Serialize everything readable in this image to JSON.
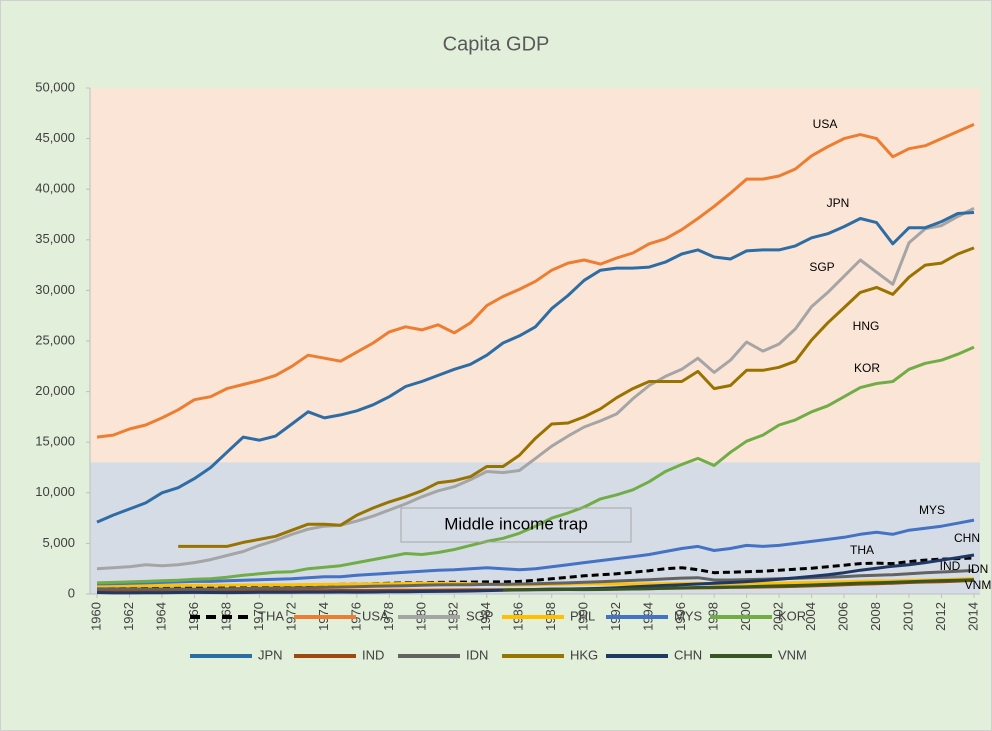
{
  "chart_data": {
    "type": "line",
    "title": "Capita GDP",
    "x": [
      1960,
      1961,
      1962,
      1963,
      1964,
      1965,
      1966,
      1967,
      1968,
      1969,
      1970,
      1971,
      1972,
      1973,
      1974,
      1975,
      1976,
      1977,
      1978,
      1979,
      1980,
      1981,
      1982,
      1983,
      1984,
      1985,
      1986,
      1987,
      1988,
      1989,
      1990,
      1991,
      1992,
      1993,
      1994,
      1995,
      1996,
      1997,
      1998,
      1999,
      2000,
      2001,
      2002,
      2003,
      2004,
      2005,
      2006,
      2007,
      2008,
      2009,
      2010,
      2011,
      2012,
      2013,
      2014
    ],
    "xlim": [
      1960,
      2014
    ],
    "xticks": [
      1960,
      1962,
      1964,
      1966,
      1968,
      1970,
      1972,
      1974,
      1976,
      1978,
      1980,
      1982,
      1984,
      1986,
      1988,
      1990,
      1992,
      1994,
      1996,
      1998,
      2000,
      2002,
      2004,
      2006,
      2008,
      2010,
      2012,
      2014
    ],
    "ylim": [
      0,
      50000
    ],
    "yticks": [
      0,
      {
        "value": 5000,
        "label": "5,000"
      },
      {
        "value": 10000,
        "label": "10,000"
      },
      {
        "value": 15000,
        "label": "15,000"
      },
      {
        "value": 20000,
        "label": "20,000"
      },
      {
        "value": 25000,
        "label": "25,000"
      },
      {
        "value": 30000,
        "label": "30,000"
      },
      {
        "value": 35000,
        "label": "35,000"
      },
      {
        "value": 40000,
        "label": "40,000"
      },
      {
        "value": 45000,
        "label": "45,000"
      },
      {
        "value": 50000,
        "label": "50,000"
      }
    ],
    "bands": [
      {
        "from": 13000,
        "to": 50000,
        "color": "#fbe5d6"
      },
      {
        "from": 0,
        "to": 13000,
        "color": "#d6dce5"
      }
    ],
    "annotations": [
      "USA",
      "JPN",
      "SGP",
      "HNG",
      "KOR",
      "MYS",
      "CHN",
      "THA",
      "IND",
      "IDN",
      "VNM",
      "Middle income trap"
    ],
    "series": [
      {
        "name": "THA",
        "color": "#000000",
        "dash": true,
        "values": [
          500,
          520,
          540,
          560,
          590,
          620,
          660,
          700,
          730,
          760,
          800,
          820,
          840,
          880,
          920,
          950,
          980,
          1020,
          1060,
          1100,
          1100,
          1150,
          1170,
          1180,
          1200,
          1200,
          1250,
          1350,
          1500,
          1650,
          1800,
          1900,
          2000,
          2150,
          2300,
          2500,
          2600,
          2400,
          2100,
          2150,
          2200,
          2250,
          2350,
          2450,
          2550,
          2700,
          2850,
          3000,
          3050,
          3000,
          3200,
          3350,
          3450,
          3500,
          3550
        ]
      },
      {
        "name": "USA",
        "color": "#ed7d31",
        "values": [
          15500,
          15700,
          16300,
          16700,
          17400,
          18200,
          19200,
          19500,
          20300,
          20700,
          21100,
          21600,
          22500,
          23600,
          23300,
          23000,
          23900,
          24800,
          25900,
          26400,
          26100,
          26600,
          25800,
          26800,
          28500,
          29400,
          30100,
          30900,
          32000,
          32700,
          33000,
          32600,
          33200,
          33700,
          34600,
          35100,
          36000,
          37100,
          38300,
          39600,
          41000,
          41000,
          41300,
          42000,
          43300,
          44200,
          45000,
          45400,
          45000,
          43200,
          44000,
          44300,
          45000,
          45700,
          46400
        ]
      },
      {
        "name": "SGP",
        "color": "#a5a5a5",
        "values": [
          2500,
          2600,
          2700,
          2900,
          2800,
          2900,
          3100,
          3400,
          3800,
          4200,
          4800,
          5300,
          5900,
          6400,
          6700,
          6800,
          7200,
          7700,
          8300,
          8900,
          9600,
          10200,
          10600,
          11300,
          12100,
          12000,
          12200,
          13400,
          14600,
          15600,
          16500,
          17100,
          17800,
          19300,
          20600,
          21500,
          22200,
          23300,
          21900,
          23100,
          24900,
          24000,
          24700,
          26200,
          28400,
          29800,
          31400,
          33000,
          31800,
          30600,
          34700,
          36100,
          36400,
          37300,
          38100
        ]
      },
      {
        "name": "PHL",
        "color": "#ffc000",
        "values": [
          800,
          810,
          820,
          830,
          840,
          850,
          860,
          870,
          880,
          890,
          900,
          910,
          920,
          940,
          950,
          960,
          980,
          1000,
          1020,
          1040,
          1060,
          1070,
          1070,
          1020,
          950,
          900,
          900,
          920,
          950,
          980,
          1000,
          990,
          980,
          990,
          1000,
          1020,
          1050,
          1060,
          1000,
          1020,
          1050,
          1060,
          1080,
          1110,
          1140,
          1180,
          1220,
          1260,
          1290,
          1290,
          1340,
          1370,
          1420,
          1470,
          1520
        ]
      },
      {
        "name": "MYS",
        "color": "#4472c4",
        "values": [
          1000,
          1030,
          1060,
          1100,
          1150,
          1200,
          1250,
          1250,
          1300,
          1350,
          1400,
          1450,
          1500,
          1600,
          1700,
          1700,
          1850,
          1950,
          2050,
          2150,
          2250,
          2350,
          2400,
          2500,
          2600,
          2500,
          2400,
          2500,
          2700,
          2900,
          3100,
          3300,
          3500,
          3700,
          3900,
          4200,
          4500,
          4700,
          4300,
          4500,
          4800,
          4700,
          4800,
          5000,
          5200,
          5400,
          5600,
          5900,
          6100,
          5900,
          6300,
          6500,
          6700,
          7000,
          7300
        ]
      },
      {
        "name": "KOR",
        "color": "#70ad47",
        "values": [
          1100,
          1150,
          1200,
          1250,
          1300,
          1350,
          1450,
          1500,
          1650,
          1850,
          2000,
          2150,
          2200,
          2500,
          2650,
          2800,
          3100,
          3400,
          3700,
          4000,
          3900,
          4100,
          4400,
          4800,
          5200,
          5500,
          6000,
          6700,
          7500,
          8000,
          8600,
          9400,
          9800,
          10300,
          11100,
          12100,
          12800,
          13400,
          12700,
          14000,
          15100,
          15700,
          16700,
          17200,
          18000,
          18600,
          19500,
          20400,
          20800,
          21000,
          22200,
          22800,
          23100,
          23700,
          24400
        ]
      },
      {
        "name": "JPN",
        "color": "#2e6ca4",
        "values": [
          7100,
          7800,
          8400,
          9000,
          10000,
          10500,
          11400,
          12500,
          14000,
          15500,
          15200,
          15600,
          16800,
          18000,
          17400,
          17700,
          18100,
          18700,
          19500,
          20500,
          21000,
          21600,
          22200,
          22700,
          23600,
          24800,
          25500,
          26400,
          28200,
          29500,
          31000,
          32000,
          32200,
          32200,
          32300,
          32800,
          33600,
          34000,
          33300,
          33100,
          33900,
          34000,
          34000,
          34400,
          35200,
          35600,
          36300,
          37100,
          36700,
          34600,
          36200,
          36200,
          36800,
          37600,
          37700
        ]
      },
      {
        "name": "IND",
        "color": "#9e480e",
        "values": [
          300,
          305,
          310,
          315,
          320,
          315,
          310,
          320,
          325,
          330,
          335,
          335,
          330,
          340,
          340,
          350,
          350,
          360,
          370,
          370,
          380,
          390,
          400,
          410,
          410,
          420,
          430,
          440,
          460,
          470,
          480,
          480,
          490,
          510,
          530,
          550,
          580,
          600,
          610,
          650,
          670,
          690,
          710,
          750,
          800,
          850,
          910,
          980,
          1010,
          1070,
          1140,
          1190,
          1220,
          1270,
          1340
        ]
      },
      {
        "name": "IDN",
        "color": "#636363",
        "values": [
          500,
          505,
          500,
          490,
          495,
          490,
          480,
          490,
          510,
          540,
          560,
          580,
          600,
          620,
          650,
          680,
          710,
          760,
          790,
          820,
          860,
          900,
          910,
          920,
          950,
          960,
          990,
          1010,
          1060,
          1100,
          1160,
          1220,
          1280,
          1340,
          1410,
          1490,
          1570,
          1610,
          1380,
          1380,
          1420,
          1450,
          1500,
          1550,
          1600,
          1650,
          1720,
          1800,
          1860,
          1910,
          2000,
          2090,
          2170,
          2250,
          2330
        ]
      },
      {
        "name": "HKG",
        "color": "#997300",
        "values": [
          null,
          null,
          null,
          null,
          null,
          4700,
          4700,
          4700,
          4700,
          5100,
          5400,
          5700,
          6300,
          6900,
          6900,
          6800,
          7800,
          8500,
          9100,
          9600,
          10200,
          11000,
          11200,
          11600,
          12600,
          12600,
          13700,
          15400,
          16800,
          16900,
          17500,
          18300,
          19400,
          20300,
          21000,
          21000,
          21000,
          22000,
          20300,
          20600,
          22100,
          22100,
          22400,
          23000,
          25100,
          26800,
          28300,
          29800,
          30300,
          29600,
          31300,
          32500,
          32700,
          33600,
          34200
        ]
      },
      {
        "name": "CHN",
        "color": "#203864",
        "values": [
          150,
          110,
          110,
          120,
          130,
          150,
          160,
          150,
          140,
          150,
          170,
          180,
          180,
          190,
          190,
          200,
          190,
          200,
          220,
          230,
          250,
          260,
          280,
          300,
          340,
          380,
          410,
          440,
          480,
          490,
          510,
          550,
          620,
          700,
          780,
          850,
          920,
          990,
          1060,
          1140,
          1230,
          1330,
          1450,
          1590,
          1740,
          1900,
          2100,
          2350,
          2550,
          2750,
          2900,
          3100,
          3350,
          3600,
          3850
        ]
      },
      {
        "name": "VNM",
        "color": "#375623",
        "values": [
          null,
          null,
          null,
          null,
          null,
          null,
          null,
          null,
          null,
          null,
          null,
          null,
          null,
          null,
          null,
          null,
          null,
          null,
          null,
          null,
          null,
          null,
          null,
          null,
          null,
          400,
          410,
          420,
          430,
          440,
          430,
          440,
          460,
          490,
          520,
          560,
          600,
          640,
          660,
          690,
          720,
          760,
          800,
          840,
          890,
          950,
          1010,
          1080,
          1120,
          1160,
          1210,
          1270,
          1320,
          1360,
          1410
        ]
      }
    ]
  }
}
